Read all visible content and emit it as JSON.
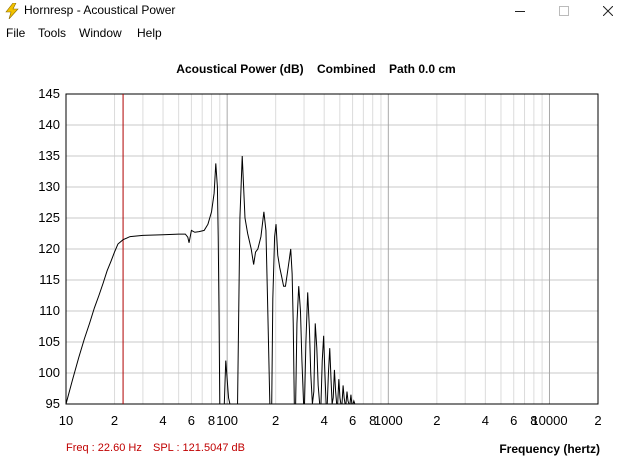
{
  "window": {
    "title": "Hornresp - Acoustical Power",
    "icon": "lightning-icon",
    "controls": {
      "minimize": "minimize-icon",
      "maximize": "maximize-icon",
      "close": "close-icon"
    }
  },
  "menu": {
    "items": [
      "File",
      "Tools",
      "Window",
      "Help"
    ]
  },
  "chart": {
    "title_parts": [
      "Acoustical Power (dB)",
      "Combined",
      "Path 0.0 cm"
    ],
    "readout_freq": "Freq : 22.60 Hz",
    "readout_spl": "SPL : 121.5047 dB",
    "x_axis_label": "Frequency (hertz)"
  },
  "colors": {
    "curve": "#000000",
    "cursor": "#b00000",
    "readout": "#c00000",
    "grid": "#c8c8c8"
  },
  "chart_data": {
    "type": "line",
    "title": "Acoustical Power (dB)   Combined   Path 0.0 cm",
    "xlabel": "Frequency (hertz)",
    "ylabel": "",
    "x_scale": "log",
    "xlim": [
      10,
      20000
    ],
    "ylim": [
      95,
      145
    ],
    "y_ticks": [
      95,
      100,
      105,
      110,
      115,
      120,
      125,
      130,
      135,
      140,
      145
    ],
    "x_tick_labels": [
      {
        "v": 10,
        "t": "10"
      },
      {
        "v": 20,
        "t": "2"
      },
      {
        "v": 40,
        "t": "4"
      },
      {
        "v": 60,
        "t": "6"
      },
      {
        "v": 80,
        "t": "8"
      },
      {
        "v": 100,
        "t": "100"
      },
      {
        "v": 200,
        "t": "2"
      },
      {
        "v": 400,
        "t": "4"
      },
      {
        "v": 600,
        "t": "6"
      },
      {
        "v": 800,
        "t": "8"
      },
      {
        "v": 1000,
        "t": "1000"
      },
      {
        "v": 2000,
        "t": "2"
      },
      {
        "v": 4000,
        "t": "4"
      },
      {
        "v": 6000,
        "t": "6"
      },
      {
        "v": 8000,
        "t": "8"
      },
      {
        "v": 10000,
        "t": "10000"
      },
      {
        "v": 20000,
        "t": "2"
      }
    ],
    "grid": true,
    "cursor_freq": 22.6,
    "series": [
      {
        "points": [
          [
            10,
            95
          ],
          [
            11,
            99
          ],
          [
            12,
            102.5
          ],
          [
            13,
            105.5
          ],
          [
            14,
            108
          ],
          [
            15,
            110.5
          ],
          [
            16,
            112.5
          ],
          [
            17,
            114.5
          ],
          [
            18,
            116.5
          ],
          [
            19,
            118
          ],
          [
            20,
            119.5
          ],
          [
            21,
            120.8
          ],
          [
            22.6,
            121.5
          ],
          [
            25,
            122
          ],
          [
            30,
            122.2
          ],
          [
            40,
            122.3
          ],
          [
            50,
            122.4
          ],
          [
            55,
            122.4
          ],
          [
            57,
            121.9
          ],
          [
            58,
            121
          ],
          [
            59,
            122
          ],
          [
            60,
            123
          ],
          [
            63,
            122.7
          ],
          [
            67,
            122.8
          ],
          [
            72,
            123
          ],
          [
            76,
            124
          ],
          [
            80,
            126
          ],
          [
            83,
            129
          ],
          [
            85,
            133.8
          ],
          [
            87,
            130
          ],
          [
            88,
            122
          ],
          [
            89,
            110
          ],
          [
            90,
            95
          ],
          [
            96,
            95
          ],
          [
            98,
            102
          ],
          [
            102,
            96
          ],
          [
            104,
            95
          ],
          [
            116,
            95
          ],
          [
            120,
            125
          ],
          [
            124,
            135
          ],
          [
            126,
            131
          ],
          [
            129,
            125
          ],
          [
            134,
            122.5
          ],
          [
            141,
            120
          ],
          [
            146,
            117.5
          ],
          [
            150,
            119.5
          ],
          [
            155,
            120
          ],
          [
            162,
            122
          ],
          [
            169,
            126
          ],
          [
            174,
            123
          ],
          [
            178,
            112
          ],
          [
            184,
            95
          ],
          [
            189,
            95
          ],
          [
            192,
            112
          ],
          [
            197,
            122
          ],
          [
            201,
            124
          ],
          [
            206,
            119
          ],
          [
            212,
            117
          ],
          [
            218,
            115.5
          ],
          [
            224,
            114
          ],
          [
            230,
            114
          ],
          [
            236,
            116
          ],
          [
            242,
            118
          ],
          [
            248,
            120
          ],
          [
            253,
            116
          ],
          [
            257,
            108
          ],
          [
            261,
            95
          ],
          [
            266,
            95
          ],
          [
            271,
            108
          ],
          [
            278,
            114
          ],
          [
            285,
            110
          ],
          [
            291,
            102
          ],
          [
            298,
            95
          ],
          [
            302,
            95
          ],
          [
            308,
            105
          ],
          [
            316,
            113
          ],
          [
            324,
            107
          ],
          [
            330,
            100
          ],
          [
            338,
            95
          ],
          [
            345,
            97
          ],
          [
            352,
            108
          ],
          [
            360,
            104
          ],
          [
            367,
            98
          ],
          [
            375,
            95
          ],
          [
            382,
            95
          ],
          [
            389,
            102
          ],
          [
            397,
            106
          ],
          [
            404,
            100
          ],
          [
            411,
            95
          ],
          [
            418,
            95
          ],
          [
            425,
            100
          ],
          [
            433,
            104
          ],
          [
            441,
            99
          ],
          [
            448,
            95
          ],
          [
            455,
            96
          ],
          [
            463,
            100.5
          ],
          [
            471,
            97
          ],
          [
            478,
            95
          ],
          [
            485,
            95
          ],
          [
            493,
            99
          ],
          [
            501,
            96
          ],
          [
            508,
            95
          ],
          [
            516,
            95
          ],
          [
            524,
            98
          ],
          [
            532,
            96
          ],
          [
            539,
            95
          ],
          [
            546,
            95
          ],
          [
            554,
            97
          ],
          [
            562,
            95.5
          ],
          [
            570,
            95
          ],
          [
            578,
            95
          ],
          [
            586,
            96.5
          ],
          [
            594,
            95
          ],
          [
            603,
            95
          ],
          [
            611,
            95.5
          ],
          [
            620,
            95
          ]
        ]
      }
    ]
  }
}
